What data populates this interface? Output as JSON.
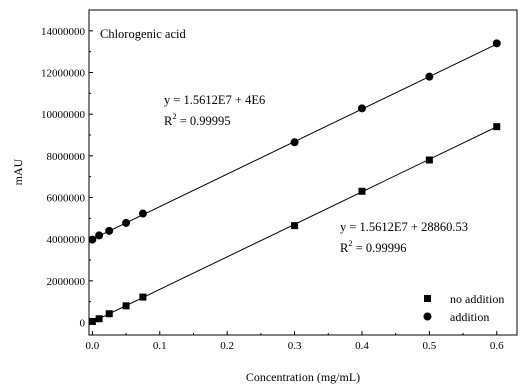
{
  "chart_data": {
    "type": "scatter",
    "title": "Chlorogenic acid",
    "xlabel": "Concentration (mg/mL)",
    "ylabel": "mAU",
    "xlim": [
      -0.005,
      0.63
    ],
    "ylim": [
      -600000,
      15000000
    ],
    "x_ticks": [
      0.0,
      0.1,
      0.2,
      0.3,
      0.4,
      0.5,
      0.6
    ],
    "x_tick_labels": [
      "0.0",
      "0.1",
      "0.2",
      "0.3",
      "0.4",
      "0.5",
      "0.6"
    ],
    "y_ticks": [
      0,
      2000000,
      4000000,
      6000000,
      8000000,
      10000000,
      12000000,
      14000000
    ],
    "y_tick_labels": [
      "0",
      "2000000",
      "4000000",
      "6000000",
      "8000000",
      "10000000",
      "12000000",
      "14000000"
    ],
    "legend_position": "bottom-right",
    "series": [
      {
        "name": "no addition",
        "marker": "square",
        "x": [
          0.0,
          0.01,
          0.025,
          0.05,
          0.075,
          0.3,
          0.4,
          0.5,
          0.6
        ],
        "y": [
          50000,
          180000,
          420000,
          800000,
          1220000,
          4650000,
          6300000,
          7800000,
          9400000
        ],
        "fit": {
          "slope": 15612000,
          "intercept": 28860.53
        },
        "equation": "y = 1.5612E7 + 28860.53",
        "r2_prefix": "R",
        "r2_exp": "2",
        "r2_value": " = 0.99996"
      },
      {
        "name": "addition",
        "marker": "circle",
        "x": [
          0.0,
          0.01,
          0.025,
          0.05,
          0.075,
          0.3,
          0.4,
          0.5,
          0.6
        ],
        "y": [
          3980000,
          4180000,
          4400000,
          4780000,
          5230000,
          8650000,
          10280000,
          11800000,
          13400000
        ],
        "fit": {
          "slope": 15612000,
          "intercept": 4000000
        },
        "equation": "y = 1.5612E7 + 4E6",
        "r2_prefix": "R",
        "r2_exp": "2",
        "r2_value": " = 0.99995"
      }
    ]
  }
}
